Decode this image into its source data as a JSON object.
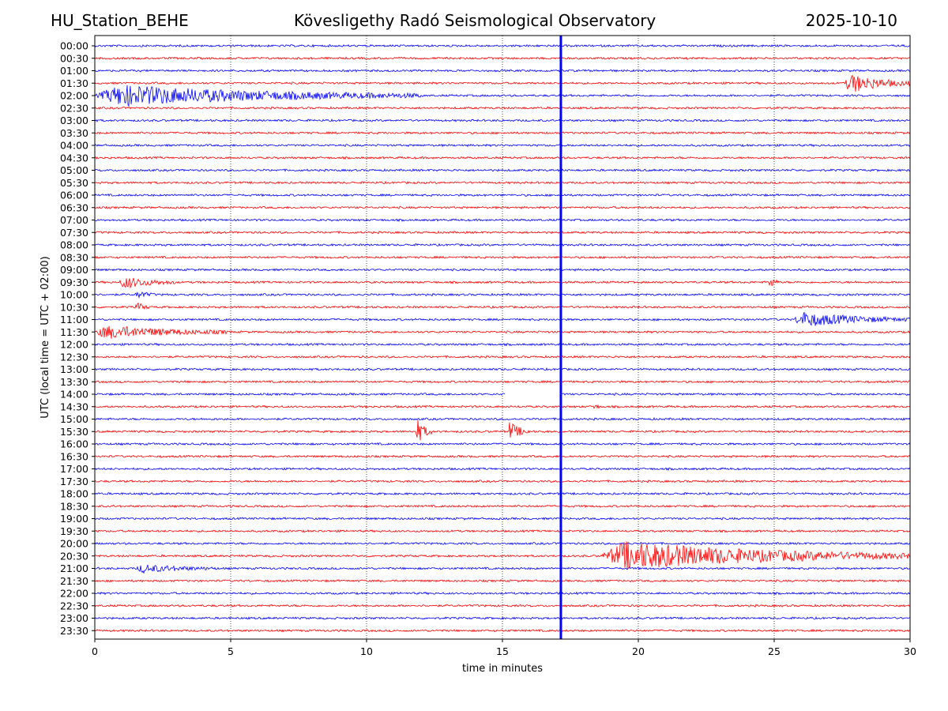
{
  "header": {
    "station": "HU_Station_BEHE",
    "observatory": "Kövesligethy Radó Seismological Observatory",
    "date": "2025-10-10"
  },
  "chart_data": {
    "type": "line",
    "subtype": "helicorder",
    "xlabel": "time in minutes",
    "ylabel": "UTC (local time = UTC + 02:00)",
    "xlim": [
      0,
      30
    ],
    "xticks": [
      0,
      5,
      10,
      15,
      20,
      25,
      30
    ],
    "xtick_labels": [
      "0",
      "5",
      "10",
      "15",
      "20",
      "25",
      "30"
    ],
    "grid_x": true,
    "row_labels": [
      "00:00",
      "00:30",
      "01:00",
      "01:30",
      "02:00",
      "02:30",
      "03:00",
      "03:30",
      "04:00",
      "04:30",
      "05:00",
      "05:30",
      "06:00",
      "06:30",
      "07:00",
      "07:30",
      "08:00",
      "08:30",
      "09:00",
      "09:30",
      "10:00",
      "10:30",
      "11:00",
      "11:30",
      "12:00",
      "12:30",
      "13:00",
      "13:30",
      "14:00",
      "14:30",
      "15:00",
      "15:30",
      "16:00",
      "16:30",
      "17:00",
      "17:30",
      "18:00",
      "18:30",
      "19:00",
      "19:30",
      "20:00",
      "20:30",
      "21:00",
      "21:30",
      "22:00",
      "22:30",
      "23:00",
      "23:30"
    ],
    "trace_colors": [
      "#0000ff",
      "#ff0000"
    ],
    "marker_line": {
      "x_minutes": 17.15,
      "color": "#0000ff"
    },
    "events": [
      {
        "row": "01:30",
        "start": 27.6,
        "end": 30.0,
        "amplitude": 3.0
      },
      {
        "row": "02:00",
        "start": 0.0,
        "end": 12.0,
        "amplitude": 3.2
      },
      {
        "row": "09:30",
        "start": 0.9,
        "end": 3.0,
        "amplitude": 1.8
      },
      {
        "row": "09:30",
        "start": 24.8,
        "end": 25.2,
        "amplitude": 1.8
      },
      {
        "row": "10:00",
        "start": 1.5,
        "end": 2.2,
        "amplitude": 1.2
      },
      {
        "row": "10:30",
        "start": 1.5,
        "end": 2.0,
        "amplitude": 1.5
      },
      {
        "row": "11:00",
        "start": 25.7,
        "end": 30.0,
        "amplitude": 2.2
      },
      {
        "row": "11:30",
        "start": 0.0,
        "end": 5.0,
        "amplitude": 2.0
      },
      {
        "row": "14:30",
        "start": 18.3,
        "end": 18.6,
        "amplitude": 1.2
      },
      {
        "row": "15:30",
        "start": 11.8,
        "end": 12.4,
        "amplitude": 4.0
      },
      {
        "row": "15:30",
        "start": 15.2,
        "end": 16.0,
        "amplitude": 3.0
      },
      {
        "row": "20:30",
        "start": 18.6,
        "end": 30.0,
        "amplitude": 4.5
      },
      {
        "row": "21:00",
        "start": 1.5,
        "end": 4.5,
        "amplitude": 1.2
      }
    ],
    "gaps": [
      {
        "row": "14:00",
        "start": 15.1,
        "end": 17.1
      }
    ]
  }
}
